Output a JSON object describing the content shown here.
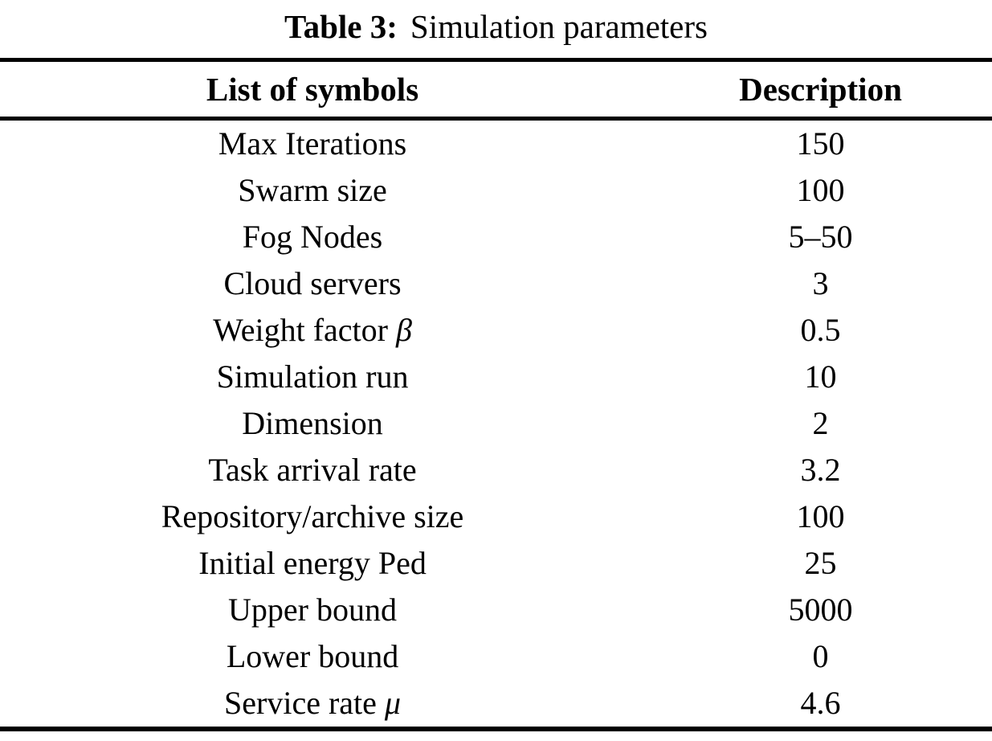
{
  "caption": {
    "label": "Table 3:",
    "text": "Simulation parameters"
  },
  "table": {
    "columns": [
      "List of symbols",
      "Description"
    ],
    "rows": [
      {
        "symbol": "Max Iterations",
        "math": "",
        "value": "150"
      },
      {
        "symbol": "Swarm size",
        "math": "",
        "value": "100"
      },
      {
        "symbol": "Fog Nodes",
        "math": "",
        "value": "5–50"
      },
      {
        "symbol": "Cloud servers",
        "math": "",
        "value": "3"
      },
      {
        "symbol": "Weight factor",
        "math": "β",
        "value": "0.5"
      },
      {
        "symbol": "Simulation run",
        "math": "",
        "value": "10"
      },
      {
        "symbol": "Dimension",
        "math": "",
        "value": "2"
      },
      {
        "symbol": "Task arrival rate",
        "math": "",
        "value": "3.2"
      },
      {
        "symbol": "Repository/archive size",
        "math": "",
        "value": "100"
      },
      {
        "symbol": "Initial energy Ped",
        "math": "",
        "value": "25"
      },
      {
        "symbol": "Upper bound",
        "math": "",
        "value": "5000"
      },
      {
        "symbol": "Lower bound",
        "math": "",
        "value": "0"
      },
      {
        "symbol": "Service rate",
        "math": "μ",
        "value": "4.6"
      }
    ]
  },
  "colors": {
    "text": "#000000",
    "background": "#ffffff",
    "rule": "#000000"
  }
}
